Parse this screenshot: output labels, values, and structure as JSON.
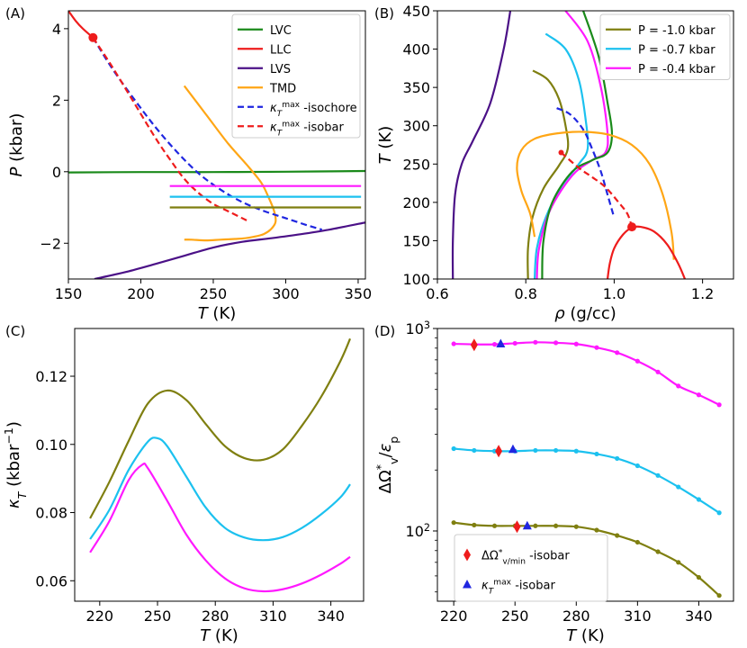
{
  "chart_data": [
    {
      "panel": "(A)",
      "type": "line",
      "xlabel": "T (K)",
      "ylabel": "P (kbar)",
      "xlim": [
        150,
        355
      ],
      "ylim": [
        -3,
        4.5
      ],
      "xticks": [
        "150",
        "200",
        "250",
        "300",
        "350"
      ],
      "yticks": [
        "−2",
        "0",
        "2",
        "4"
      ],
      "legend_position": "top-right",
      "series": [
        {
          "name": "LVC",
          "color": "#1a8a1a",
          "style": "solid",
          "x": [
            150,
            200,
            250,
            300,
            355
          ],
          "y": [
            -0.02,
            -0.01,
            -0.01,
            0.0,
            0.02
          ]
        },
        {
          "name": "LLC",
          "color": "#ee1c1c",
          "style": "solid",
          "x": [
            150,
            155,
            160,
            167
          ],
          "y": [
            4.5,
            4.22,
            4.0,
            3.75
          ]
        },
        {
          "name": "LVS",
          "color": "#4b1187",
          "style": "solid",
          "x": [
            168,
            190,
            210,
            230,
            250,
            270,
            290,
            310,
            330,
            355
          ],
          "y": [
            -3.0,
            -2.8,
            -2.58,
            -2.35,
            -2.12,
            -1.96,
            -1.86,
            -1.75,
            -1.62,
            -1.42
          ]
        },
        {
          "name": "TMD",
          "color": "#ffa615",
          "style": "solid",
          "x": [
            230,
            245,
            260,
            273,
            283,
            288,
            292,
            293,
            290,
            285,
            278,
            272,
            265,
            255,
            245,
            235,
            230
          ],
          "y": [
            2.4,
            1.6,
            0.8,
            0.2,
            -0.3,
            -0.7,
            -1.1,
            -1.4,
            -1.6,
            -1.74,
            -1.82,
            -1.86,
            -1.88,
            -1.9,
            -1.92,
            -1.9,
            -1.9
          ]
        },
        {
          "name": "κT^max -isochore",
          "color": "#1f26e0",
          "style": "dashed",
          "x": [
            167,
            180,
            195,
            210,
            225,
            240,
            255,
            270,
            285,
            300,
            315,
            325
          ],
          "y": [
            3.75,
            2.9,
            2.05,
            1.25,
            0.55,
            -0.05,
            -0.5,
            -0.85,
            -1.1,
            -1.3,
            -1.5,
            -1.62
          ]
        },
        {
          "name": "κT^max -isobar",
          "color": "#ee1c1c",
          "style": "dashed",
          "x": [
            167,
            180,
            195,
            210,
            220,
            230,
            240,
            250,
            260,
            270,
            275
          ],
          "y": [
            3.75,
            2.95,
            1.95,
            0.95,
            0.35,
            -0.2,
            -0.6,
            -0.9,
            -1.1,
            -1.3,
            -1.4
          ]
        },
        {
          "name": "P = -0.4 kbar",
          "color": "#ff19ff",
          "style": "solid",
          "x": [
            220,
            352
          ],
          "y": [
            -0.4,
            -0.4
          ],
          "in_legend": false
        },
        {
          "name": "P = -0.7 kbar",
          "color": "#1cc1ef",
          "style": "solid",
          "x": [
            220,
            352
          ],
          "y": [
            -0.7,
            -0.7
          ],
          "in_legend": false
        },
        {
          "name": "P = -1.0 kbar",
          "color": "#7f7f10",
          "style": "solid",
          "x": [
            220,
            352
          ],
          "y": [
            -1.0,
            -1.0
          ],
          "in_legend": false
        }
      ],
      "markers": [
        {
          "x": 167,
          "y": 3.75,
          "color": "#ee1c1c",
          "shape": "circle"
        }
      ]
    },
    {
      "panel": "(B)",
      "type": "line",
      "xlabel": "ρ (g/cc)",
      "ylabel": "T (K)",
      "xlim": [
        0.6,
        1.27
      ],
      "ylim": [
        100,
        450
      ],
      "xticks": [
        "0.6",
        "0.8",
        "1.0",
        "1.2"
      ],
      "yticks": [
        "100",
        "150",
        "200",
        "250",
        "300",
        "350",
        "400",
        "450"
      ],
      "legend_position": "top-right",
      "series": [
        {
          "name": "P = -1.0 kbar",
          "color": "#7f7f10",
          "style": "solid",
          "x": [
            0.816,
            0.85,
            0.875,
            0.89,
            0.895,
            0.875,
            0.84,
            0.815,
            0.805,
            0.805
          ],
          "y": [
            372,
            360,
            335,
            300,
            270,
            248,
            218,
            180,
            140,
            100
          ]
        },
        {
          "name": "P = -0.7 kbar",
          "color": "#1cc1ef",
          "style": "solid",
          "x": [
            0.845,
            0.89,
            0.92,
            0.935,
            0.94,
            0.92,
            0.88,
            0.845,
            0.825,
            0.82
          ],
          "y": [
            420,
            400,
            360,
            310,
            270,
            250,
            220,
            180,
            140,
            100
          ]
        },
        {
          "name": "P = -0.4 kbar",
          "color": "#ff19ff",
          "style": "solid",
          "x": [
            0.89,
            0.94,
            0.97,
            0.985,
            0.98,
            0.95,
            0.905,
            0.855,
            0.83,
            0.825
          ],
          "y": [
            450,
            410,
            350,
            290,
            265,
            255,
            235,
            190,
            140,
            100
          ]
        },
        {
          "name": "LVC",
          "color": "#1a8a1a",
          "style": "solid",
          "in_legend": false,
          "x": [
            0.93,
            0.965,
            0.985,
            0.995,
            0.985,
            0.95,
            0.905,
            0.86,
            0.84,
            0.837
          ],
          "y": [
            450,
            390,
            330,
            290,
            265,
            255,
            240,
            200,
            150,
            100
          ]
        },
        {
          "name": "LVS",
          "color": "#4b1187",
          "style": "solid",
          "in_legend": false,
          "x": [
            0.765,
            0.75,
            0.72,
            0.68,
            0.655,
            0.64,
            0.635,
            0.635
          ],
          "y": [
            450,
            400,
            330,
            280,
            250,
            210,
            150,
            100
          ]
        },
        {
          "name": "TMD",
          "color": "#ffa615",
          "style": "solid",
          "in_legend": false,
          "x": [
            1.135,
            1.13,
            1.11,
            1.08,
            1.04,
            0.99,
            0.93,
            0.87,
            0.82,
            0.79,
            0.78,
            0.79,
            0.81,
            0.82
          ],
          "y": [
            125,
            160,
            210,
            250,
            275,
            288,
            292,
            290,
            283,
            268,
            245,
            215,
            185,
            155
          ]
        },
        {
          "name": "κT^max -isochore",
          "color": "#1f26e0",
          "style": "dashed",
          "in_legend": false,
          "x": [
            0.87,
            0.9,
            0.93,
            0.95,
            0.97,
            0.985,
            1.0
          ],
          "y": [
            323,
            315,
            295,
            270,
            240,
            210,
            180
          ]
        },
        {
          "name": "κT^max -isobar",
          "color": "#ee1c1c",
          "style": "dashed",
          "in_legend": false,
          "x": [
            0.88,
            0.92,
            0.95,
            0.98,
            1.01,
            1.03,
            1.04
          ],
          "y": [
            265,
            245,
            233,
            220,
            200,
            185,
            168
          ]
        },
        {
          "name": "LLC",
          "color": "#ee1c1c",
          "style": "solid",
          "in_legend": false,
          "x": [
            0.985,
            0.99,
            1.0,
            1.02,
            1.04,
            1.06,
            1.09,
            1.12,
            1.145,
            1.16
          ],
          "y": [
            100,
            120,
            140,
            158,
            167,
            168,
            162,
            145,
            120,
            100
          ]
        }
      ],
      "markers": [
        {
          "x": 1.04,
          "y": 168,
          "color": "#ee1c1c",
          "shape": "circle"
        },
        {
          "x": 0.88,
          "y": 265,
          "color": "#ee1c1c",
          "shape": "circle",
          "size": "small"
        }
      ]
    },
    {
      "panel": "(C)",
      "type": "line",
      "xlabel": "T (K)",
      "ylabel": "κ_T (kbar^−1)",
      "xlim": [
        207,
        357
      ],
      "ylim": [
        0.054,
        0.134
      ],
      "xticks": [
        "220",
        "250",
        "280",
        "310",
        "340"
      ],
      "yticks": [
        "0.06",
        "0.08",
        "0.10",
        "0.12"
      ],
      "series": [
        {
          "name": "P = -1.0 kbar",
          "color": "#7f7f10",
          "x": [
            215,
            225,
            235,
            245,
            255,
            265,
            275,
            285,
            295,
            305,
            315,
            325,
            335,
            345,
            350
          ],
          "y": [
            0.0783,
            0.089,
            0.101,
            0.112,
            0.1158,
            0.113,
            0.106,
            0.0995,
            0.096,
            0.0955,
            0.0985,
            0.1055,
            0.114,
            0.1245,
            0.131
          ]
        },
        {
          "name": "P = -0.7 kbar",
          "color": "#1cc1ef",
          "x": [
            215,
            225,
            235,
            245,
            250,
            255,
            265,
            275,
            285,
            295,
            305,
            315,
            325,
            335,
            345,
            350
          ],
          "y": [
            0.0722,
            0.0808,
            0.0925,
            0.1008,
            0.1018,
            0.0995,
            0.0905,
            0.0815,
            0.0755,
            0.0727,
            0.0719,
            0.0728,
            0.0755,
            0.0795,
            0.0845,
            0.0883
          ]
        },
        {
          "name": "P = -0.4 kbar",
          "color": "#ff19ff",
          "x": [
            215,
            225,
            235,
            242,
            245,
            255,
            265,
            275,
            285,
            295,
            305,
            315,
            325,
            335,
            345,
            350
          ],
          "y": [
            0.0683,
            0.0775,
            0.0895,
            0.094,
            0.093,
            0.0835,
            0.0735,
            0.066,
            0.0607,
            0.0578,
            0.0569,
            0.0575,
            0.0592,
            0.0618,
            0.065,
            0.067
          ]
        }
      ]
    },
    {
      "panel": "(D)",
      "type": "scatter",
      "xlabel": "T (K)",
      "ylabel": "ΔΩ*_v / ε_p",
      "yscale": "log",
      "xlim": [
        212,
        357
      ],
      "ylim": [
        45,
        1000
      ],
      "xticks": [
        "220",
        "250",
        "280",
        "310",
        "340"
      ],
      "yticks": [
        "10^2",
        "10^3"
      ],
      "legend_position": "bottom-left",
      "series": [
        {
          "name": "P = -0.4 kbar",
          "color": "#ff19ff",
          "x": [
            220,
            230,
            240,
            250,
            260,
            270,
            280,
            290,
            300,
            310,
            320,
            330,
            340,
            350
          ],
          "y": [
            840,
            835,
            835,
            845,
            855,
            850,
            838,
            805,
            760,
            690,
            610,
            520,
            470,
            420
          ]
        },
        {
          "name": "P = -0.7 kbar",
          "color": "#1cc1ef",
          "x": [
            220,
            230,
            240,
            250,
            260,
            270,
            280,
            290,
            300,
            310,
            320,
            330,
            340,
            350
          ],
          "y": [
            255,
            250,
            248,
            248,
            250,
            250,
            248,
            240,
            228,
            210,
            188,
            165,
            143,
            123
          ]
        },
        {
          "name": "P = -1.0 kbar",
          "color": "#7f7f10",
          "x": [
            220,
            230,
            240,
            250,
            260,
            270,
            280,
            290,
            300,
            310,
            320,
            330,
            340,
            350
          ],
          "y": [
            110,
            107,
            106,
            106,
            106,
            106,
            105,
            101,
            95,
            88,
            79,
            70,
            59,
            48
          ]
        }
      ],
      "markers": [
        {
          "name": "ΔΩ*v/min -isobar",
          "shape": "diamond",
          "color": "#ee1c1c",
          "points": [
            {
              "x": 230,
              "y": 830
            },
            {
              "x": 242,
              "y": 248
            },
            {
              "x": 251,
              "y": 105
            }
          ]
        },
        {
          "name": "κT^max -isobar",
          "shape": "triangle",
          "color": "#1f26e0",
          "points": [
            {
              "x": 243,
              "y": 840
            },
            {
              "x": 249,
              "y": 253
            },
            {
              "x": 256,
              "y": 106
            }
          ]
        }
      ]
    }
  ]
}
